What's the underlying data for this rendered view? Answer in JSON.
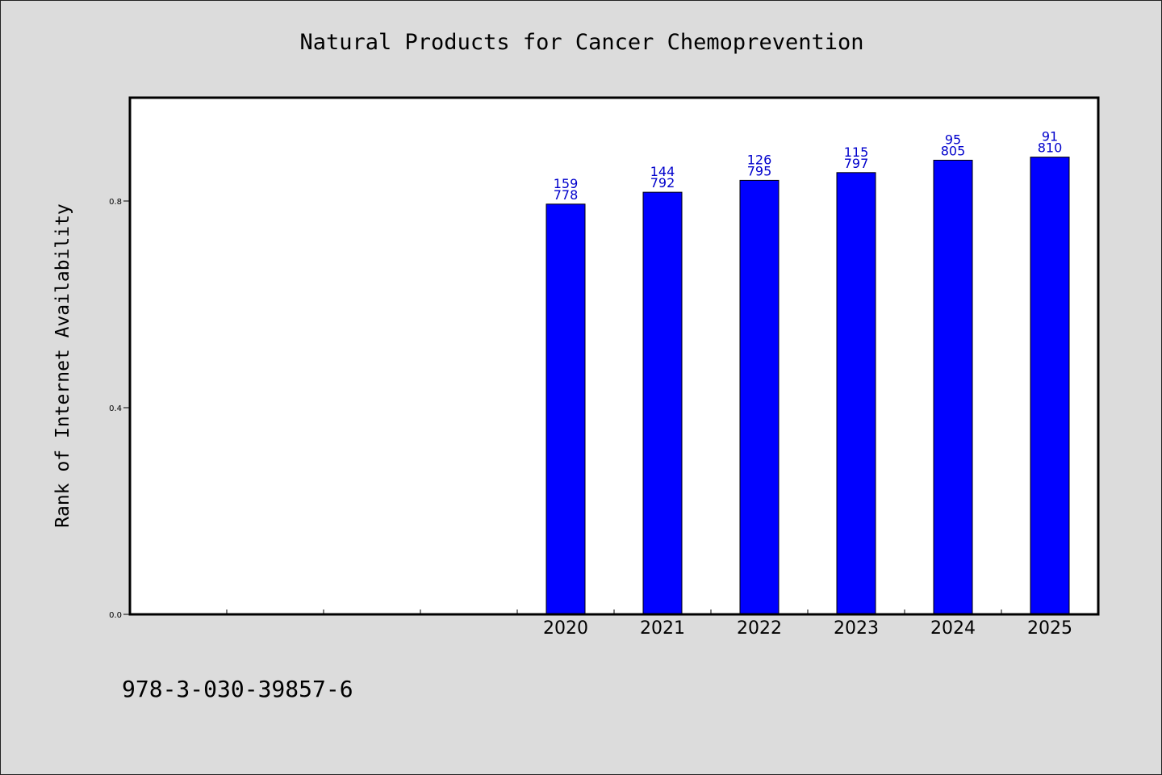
{
  "chart_data": {
    "type": "bar",
    "title": "Natural Products for Cancer Chemoprevention",
    "xlabel": "",
    "ylabel": "Rank of Internet Availability",
    "categories": [
      "",
      "",
      "",
      "",
      "2020",
      "2021",
      "2022",
      "2023",
      "2024",
      "2025"
    ],
    "values": [
      null,
      null,
      null,
      null,
      0.794,
      0.817,
      0.84,
      0.855,
      0.879,
      0.885
    ],
    "annotations": [
      null,
      null,
      null,
      null,
      [
        "159",
        "778"
      ],
      [
        "144",
        "792"
      ],
      [
        "126",
        "795"
      ],
      [
        "115",
        "797"
      ],
      [
        "95",
        "805"
      ],
      [
        "91",
        "810"
      ]
    ],
    "yticks": [
      "0.0",
      "0.4",
      "0.8"
    ],
    "ylim": [
      0,
      1.0
    ],
    "grid": false,
    "legend": "none",
    "colors": {
      "bar": "#0000ff",
      "label": "#0000cc",
      "background": "#dcdcdc",
      "plot_background": "#ffffff"
    }
  },
  "footer": {
    "isbn": "978-3-030-39857-6"
  }
}
